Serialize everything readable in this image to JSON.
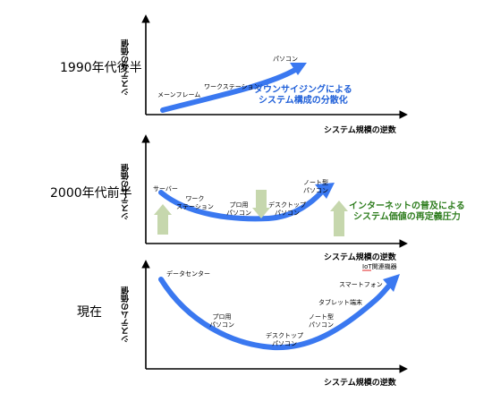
{
  "colors": {
    "curve": "#3a78f0",
    "axis": "#000000",
    "note_blue": "#1f5fd8",
    "note_green": "#2e7d1e",
    "arrow_green": "#c6d7ad"
  },
  "axis_labels": {
    "y": "システムの価値",
    "x": "システム規模の逆数"
  },
  "panels": [
    {
      "era": "1990年代後半",
      "labels": [
        "メーンフレーム",
        "ワークステーション",
        "パソコン"
      ],
      "note": [
        "ダウンサイジングによる",
        "システム構成の分散化"
      ]
    },
    {
      "era": "2000年代前半",
      "labels": [
        "サーバー",
        "ワーク",
        "ステーション",
        "プロ用",
        "パソコン",
        "デスクトップ",
        "パソコン",
        "ノート型",
        "パソコン"
      ],
      "note": [
        "インターネットの普及による",
        "システム価値の再定義圧力"
      ]
    },
    {
      "era": "現在",
      "labels": [
        "データセンター",
        "プロ用",
        "パソコン",
        "デスクトップ",
        "パソコン",
        "ノート型",
        "パソコン",
        "タブレット端末",
        "スマートフォン",
        "IoT関連機器"
      ]
    }
  ]
}
